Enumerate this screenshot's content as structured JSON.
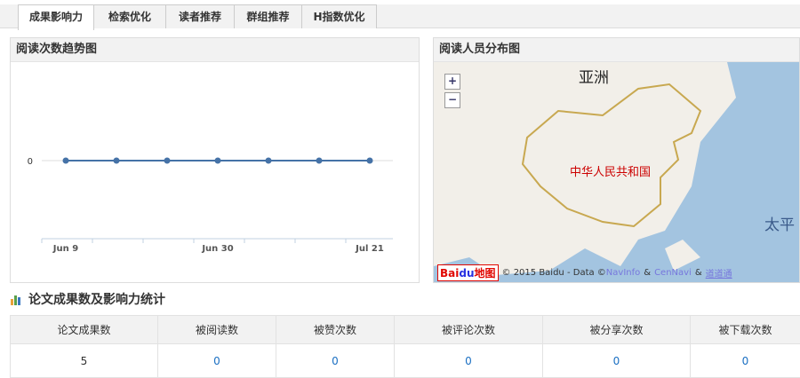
{
  "tabs": [
    "成果影响力",
    "检索优化",
    "读者推荐",
    "群组推荐",
    "H指数优化"
  ],
  "active_tab": 0,
  "trend_panel": {
    "title": "阅读次数趋势图"
  },
  "map_panel": {
    "title": "阅读人员分布图",
    "zoom_in": "+",
    "zoom_out": "−",
    "label_asia": "亚洲",
    "label_china": "中华人民共和国",
    "label_ocean": "太平",
    "logo": "Bai du 地图",
    "copyright": "© 2015 Baidu - Data © ",
    "link1": "NavInfo",
    "amp": " & ",
    "link2": "CenNavi",
    "link3": "道道通",
    "colors": {
      "water": "#a3c4e0",
      "land": "#f2efe9",
      "border": "#c8a850",
      "china_label": "#cc0000"
    }
  },
  "stats": {
    "title": "论文成果数及影响力统计",
    "headers": [
      "论文成果数",
      "被阅读数",
      "被赞次数",
      "被评论次数",
      "被分享次数",
      "被下载次数"
    ],
    "values": [
      "5",
      "0",
      "0",
      "0",
      "0",
      "0"
    ]
  },
  "chart_data": {
    "type": "line",
    "x": [
      "Jun 9",
      "Jun 16",
      "Jun 23",
      "Jun 30",
      "Jul 7",
      "Jul 14",
      "Jul 21"
    ],
    "xticklabels": [
      "Jun 9",
      "Jun 30",
      "Jul 21"
    ],
    "series": [
      {
        "values": [
          0,
          0,
          0,
          0,
          0,
          0,
          0
        ]
      }
    ],
    "yticklabels": [
      "0"
    ],
    "color": "#4572a7",
    "grid": true
  }
}
